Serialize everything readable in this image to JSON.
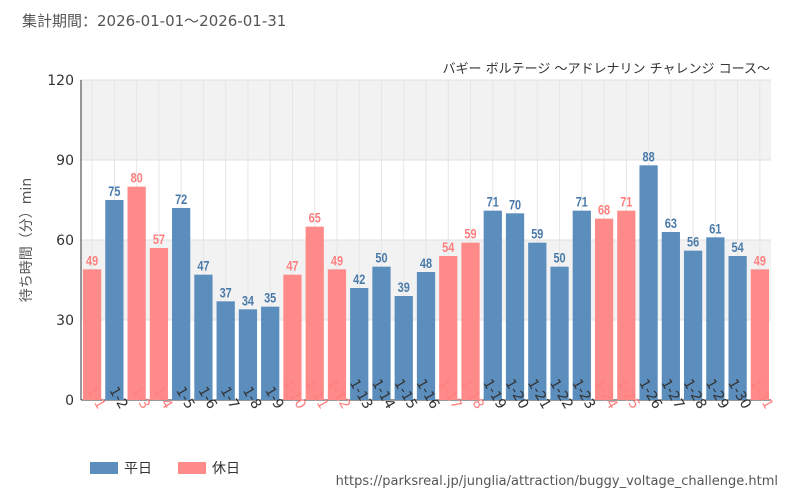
{
  "header": {
    "period_label": "集計期間：2026-01-01～2026-01-31",
    "source_url": "https://parksreal.jp/junglia/attraction/buggy_voltage_challenge.html"
  },
  "legend": {
    "weekday_label": "平日",
    "holiday_label": "休日"
  },
  "colors": {
    "weekday": "#5b8dbd",
    "holiday": "#ff8a8a",
    "weekday_text": "#4a7aaa",
    "holiday_text": "#ff7f7f"
  },
  "chart_data": {
    "type": "bar",
    "title": "バギー ボルテージ ～アドレナリン チャレンジ コース～",
    "xlabel": "",
    "ylabel": "待ち時間（分）min",
    "ylim": [
      0,
      120
    ],
    "yticks": [
      0,
      30,
      60,
      90,
      120
    ],
    "categories": [
      "1-1",
      "1-2",
      "1-3",
      "1-4",
      "1-5",
      "1-6",
      "1-7",
      "1-8",
      "1-9",
      "1-10",
      "1-11",
      "1-12",
      "1-13",
      "1-14",
      "1-15",
      "1-16",
      "1-17",
      "1-18",
      "1-19",
      "1-20",
      "1-21",
      "1-22",
      "1-23",
      "1-24",
      "1-25",
      "1-26",
      "1-27",
      "1-28",
      "1-29",
      "1-30",
      "1-31"
    ],
    "values": [
      49,
      75,
      80,
      57,
      72,
      47,
      37,
      34,
      35,
      47,
      65,
      49,
      42,
      50,
      39,
      48,
      54,
      59,
      71,
      70,
      59,
      50,
      71,
      68,
      71,
      88,
      63,
      56,
      61,
      54,
      49
    ],
    "day_type": [
      "holiday",
      "weekday",
      "holiday",
      "holiday",
      "weekday",
      "weekday",
      "weekday",
      "weekday",
      "weekday",
      "holiday",
      "holiday",
      "holiday",
      "weekday",
      "weekday",
      "weekday",
      "weekday",
      "holiday",
      "holiday",
      "weekday",
      "weekday",
      "weekday",
      "weekday",
      "weekday",
      "holiday",
      "holiday",
      "weekday",
      "weekday",
      "weekday",
      "weekday",
      "weekday",
      "holiday"
    ]
  }
}
